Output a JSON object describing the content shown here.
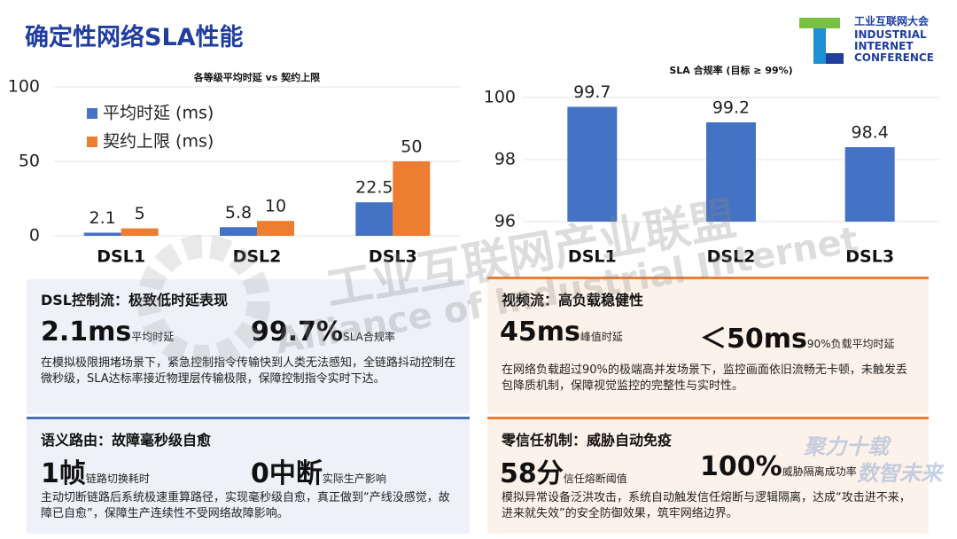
{
  "header": {
    "title": "确定性网络SLA性能"
  },
  "logo": {
    "lines": [
      "工业互联网大会",
      "INDUSTRIAL",
      "INTERNET",
      "CONFERENCE"
    ]
  },
  "watermark": {
    "cn": "工业互联网产业联盟",
    "en": "Alliance of Industrial Internet",
    "slogan": [
      "聚力十载",
      "数智未来"
    ]
  },
  "chart_data": [
    {
      "type": "bar",
      "title": "各等级平均时延 vs 契约上限",
      "categories": [
        "DSL1",
        "DSL2",
        "DSL3"
      ],
      "series": [
        {
          "name": "平均时延 (ms)",
          "color": "#4472c4",
          "values": [
            2.1,
            5.8,
            22.5
          ]
        },
        {
          "name": "契约上限 (ms)",
          "color": "#ed7d31",
          "values": [
            5,
            10,
            50
          ]
        }
      ],
      "ylim": [
        0,
        100
      ],
      "yticks": [
        0,
        50,
        100
      ],
      "grid": true,
      "legend": "top-left"
    },
    {
      "type": "bar",
      "title": "SLA 合规率 (目标 ≥ 99%)",
      "categories": [
        "DSL1",
        "DSL2",
        "DSL3"
      ],
      "values": [
        99.7,
        99.2,
        98.4
      ],
      "color": "#4472c4",
      "ylim": [
        96,
        100
      ],
      "yticks": [
        96,
        98,
        100
      ],
      "grid": true
    }
  ],
  "cards": [
    {
      "title": "DSL控制流：极致低时延表现",
      "metrics": [
        {
          "value": "2.1ms",
          "label": "平均时延"
        },
        {
          "value": "99.7%",
          "label": "SLA合规率"
        }
      ],
      "text": "在模拟极限拥堵场景下，紧急控制指令传输快到人类无法感知，全链路抖动控制在微秒级，SLA达标率接近物理层传输极限，保障控制指令实时下达。"
    },
    {
      "title": "视频流：高负载稳健性",
      "metrics": [
        {
          "value": "45ms",
          "label": "峰值时延"
        },
        {
          "value": "＜50ms",
          "label": "90%负载平均时延"
        }
      ],
      "text": "在网络负载超过90%的极端高并发场景下，监控画面依旧流畅无卡顿，未触发丢包降质机制，保障视觉监控的完整性与实时性。"
    },
    {
      "title": "语义路由：故障毫秒级自愈",
      "metrics": [
        {
          "value": "1帧",
          "label": "链路切换耗时"
        },
        {
          "value": "0中断",
          "label": "实际生产影响"
        }
      ],
      "text": "主动切断链路后系统极速重算路径，实现毫秒级自愈，真正做到“产线没感觉，故障已自愈”，保障生产连续性不受网络故障影响。"
    },
    {
      "title": "零信任机制：威胁自动免疫",
      "metrics": [
        {
          "value": "58分",
          "label": "信任熔断阈值"
        },
        {
          "value": "100%",
          "label": "威胁隔离成功率"
        }
      ],
      "text": "模拟异常设备泛洪攻击，系统自动触发信任熔断与逻辑隔离，达成“攻击进不来，进来就失效”的安全防御效果，筑牢网络边界。"
    }
  ]
}
